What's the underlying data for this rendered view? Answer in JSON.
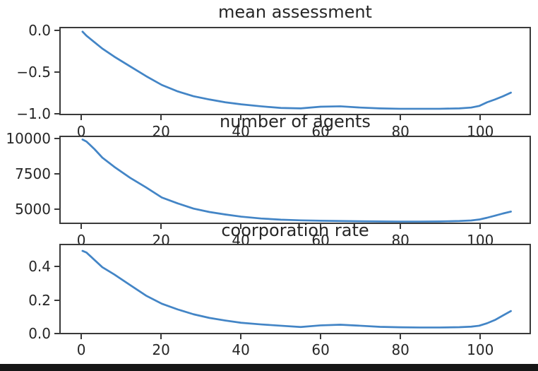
{
  "figure": {
    "background": "#ffffff",
    "text_color": "#262626",
    "spine_color": "#3a3a3a",
    "bottom_bar_color": "#161616"
  },
  "chart_data": [
    {
      "type": "line",
      "title": "mean assessment",
      "x": [
        0,
        1,
        3,
        5,
        8,
        12,
        16,
        20,
        24,
        28,
        32,
        36,
        40,
        45,
        50,
        55,
        60,
        65,
        70,
        75,
        80,
        85,
        90,
        95,
        98,
        100,
        102,
        104,
        106,
        108
      ],
      "y": [
        0,
        -0.05,
        -0.13,
        -0.21,
        -0.31,
        -0.43,
        -0.55,
        -0.66,
        -0.74,
        -0.8,
        -0.84,
        -0.875,
        -0.9,
        -0.925,
        -0.945,
        -0.95,
        -0.93,
        -0.925,
        -0.94,
        -0.95,
        -0.955,
        -0.955,
        -0.955,
        -0.95,
        -0.94,
        -0.92,
        -0.875,
        -0.84,
        -0.8,
        -0.755
      ],
      "xlim": [
        -5.5,
        112.7
      ],
      "ylim": [
        -1.017,
        0.042
      ],
      "xticks": [
        0,
        20,
        40,
        60,
        80,
        100
      ],
      "xtick_labels": [
        "0",
        "20",
        "40",
        "60",
        "80",
        "100"
      ],
      "yticks": [
        0.0,
        -0.5,
        -1.0
      ],
      "ytick_labels": [
        "0.0",
        "−0.5",
        "−1.0"
      ],
      "line_color": "#4385c6",
      "grid": false,
      "legend": null
    },
    {
      "type": "line",
      "title": "number of agents",
      "x": [
        0,
        1,
        3,
        5,
        8,
        12,
        16,
        20,
        24,
        28,
        32,
        36,
        40,
        45,
        50,
        55,
        60,
        65,
        70,
        75,
        80,
        85,
        90,
        95,
        98,
        100,
        102,
        104,
        106,
        108
      ],
      "y": [
        10000,
        9850,
        9300,
        8675,
        8000,
        7200,
        6500,
        5760,
        5330,
        4950,
        4700,
        4520,
        4360,
        4225,
        4140,
        4090,
        4060,
        4040,
        4020,
        4010,
        4000,
        4000,
        4010,
        4040,
        4080,
        4150,
        4280,
        4430,
        4590,
        4730
      ],
      "xlim": [
        -5.5,
        112.7
      ],
      "ylim": [
        3925,
        10175
      ],
      "xticks": [
        0,
        20,
        40,
        60,
        80,
        100
      ],
      "xtick_labels": [
        "0",
        "20",
        "40",
        "60",
        "80",
        "100"
      ],
      "yticks": [
        10000,
        7500,
        5000
      ],
      "ytick_labels": [
        "10000",
        "7500",
        "5000"
      ],
      "line_color": "#4385c6",
      "grid": false,
      "legend": null
    },
    {
      "type": "line",
      "title": "coorporation rate",
      "x": [
        0,
        1,
        3,
        5,
        8,
        12,
        16,
        20,
        24,
        28,
        32,
        36,
        40,
        45,
        50,
        55,
        60,
        65,
        70,
        75,
        80,
        85,
        90,
        95,
        98,
        100,
        102,
        104,
        106,
        108
      ],
      "y": [
        0.5,
        0.49,
        0.445,
        0.4,
        0.355,
        0.29,
        0.225,
        0.175,
        0.14,
        0.11,
        0.088,
        0.072,
        0.058,
        0.048,
        0.04,
        0.032,
        0.042,
        0.046,
        0.04,
        0.033,
        0.03,
        0.029,
        0.029,
        0.031,
        0.034,
        0.04,
        0.055,
        0.075,
        0.103,
        0.13
      ],
      "xlim": [
        -5.5,
        112.7
      ],
      "ylim": [
        -0.004,
        0.535
      ],
      "xticks": [
        0,
        20,
        40,
        60,
        80,
        100
      ],
      "xtick_labels": [
        "0",
        "20",
        "40",
        "60",
        "80",
        "100"
      ],
      "yticks": [
        0.4,
        0.2,
        0.0
      ],
      "ytick_labels": [
        "0.4",
        "0.2",
        "0.0"
      ],
      "line_color": "#4385c6",
      "grid": false,
      "legend": null
    }
  ]
}
